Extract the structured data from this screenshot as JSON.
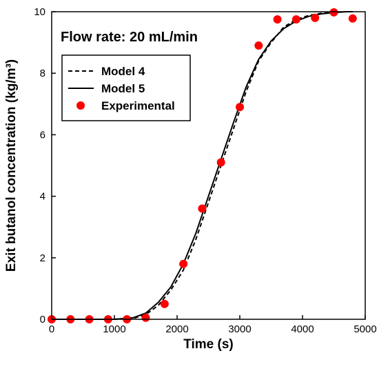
{
  "chart_data": {
    "type": "line",
    "title": "",
    "annotation": "Flow rate: 20 mL/min",
    "xlabel": "Time (s)",
    "ylabel": "Exit butanol concentration (kg/m³)",
    "xlim": [
      0,
      5000
    ],
    "ylim": [
      0,
      10
    ],
    "xticks": [
      0,
      1000,
      2000,
      3000,
      4000,
      5000
    ],
    "yticks": [
      0,
      2,
      4,
      6,
      8,
      10
    ],
    "grid": false,
    "legend_position": "top-left",
    "series": [
      {
        "name": "Model 4",
        "style": "dashed-line",
        "color": "#000000",
        "x": [
          0,
          1000,
          1300,
          1500,
          1700,
          1900,
          2100,
          2300,
          2500,
          2700,
          2900,
          3100,
          3300,
          3500,
          3700,
          3900,
          4100,
          4300,
          4500,
          4700,
          4800
        ],
        "y": [
          0,
          0,
          0.03,
          0.15,
          0.45,
          0.95,
          1.6,
          2.6,
          3.8,
          5.0,
          6.2,
          7.4,
          8.4,
          9.0,
          9.5,
          9.75,
          9.88,
          9.95,
          9.98,
          10.0,
          10.0
        ]
      },
      {
        "name": "Model 5",
        "style": "solid-line",
        "color": "#000000",
        "x": [
          0,
          1000,
          1300,
          1500,
          1700,
          1900,
          2100,
          2300,
          2500,
          2700,
          2900,
          3100,
          3300,
          3500,
          3700,
          3900,
          4100,
          4300,
          4500,
          4700,
          4800
        ],
        "y": [
          0,
          0,
          0.05,
          0.2,
          0.55,
          1.05,
          1.8,
          2.8,
          4.0,
          5.2,
          6.4,
          7.55,
          8.45,
          9.05,
          9.45,
          9.7,
          9.85,
          9.93,
          9.97,
          10.0,
          10.0
        ]
      },
      {
        "name": "Experimental",
        "style": "markers",
        "color": "#ff0000",
        "x": [
          0,
          300,
          600,
          900,
          1200,
          1500,
          1800,
          2100,
          2400,
          2700,
          3000,
          3300,
          3600,
          3900,
          4200,
          4500,
          4800
        ],
        "y": [
          0,
          0,
          0,
          0,
          0,
          0.05,
          0.5,
          1.8,
          3.6,
          5.1,
          6.9,
          8.9,
          9.75,
          9.75,
          9.8,
          9.98,
          9.78
        ]
      }
    ]
  }
}
